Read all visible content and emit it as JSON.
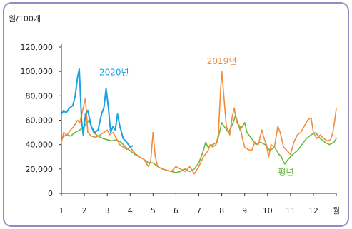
{
  "chart_data": {
    "type": "line",
    "y_unit_label": "원/100개",
    "x_unit_label": "월",
    "ylim": [
      0,
      120000
    ],
    "xlim": [
      1,
      13
    ],
    "yticks": [
      0,
      20000,
      40000,
      60000,
      80000,
      100000,
      120000
    ],
    "ytick_labels": [
      "0",
      "20,000",
      "40,000",
      "60,000",
      "80,000",
      "100,000",
      "120,000"
    ],
    "xticks": [
      1,
      2,
      3,
      4,
      5,
      6,
      7,
      8,
      9,
      10,
      11,
      12
    ],
    "xtick_labels": [
      "1",
      "2",
      "3",
      "4",
      "5",
      "6",
      "7",
      "8",
      "9",
      "10",
      "11",
      "12"
    ],
    "grid": false,
    "series": [
      {
        "name": "2019년",
        "color": "#f08c3c",
        "points": [
          [
            1.0,
            42000
          ],
          [
            1.1,
            50000
          ],
          [
            1.25,
            48000
          ],
          [
            1.4,
            52000
          ],
          [
            1.55,
            55000
          ],
          [
            1.7,
            60000
          ],
          [
            1.8,
            58000
          ],
          [
            1.95,
            70000
          ],
          [
            2.05,
            78000
          ],
          [
            2.15,
            50000
          ],
          [
            2.3,
            47000
          ],
          [
            2.5,
            46000
          ],
          [
            2.7,
            48000
          ],
          [
            2.85,
            50000
          ],
          [
            3.0,
            52000
          ],
          [
            3.1,
            48000
          ],
          [
            3.25,
            50000
          ],
          [
            3.4,
            45000
          ],
          [
            3.55,
            40000
          ],
          [
            3.7,
            38000
          ],
          [
            3.85,
            36000
          ],
          [
            4.0,
            38000
          ],
          [
            4.2,
            33000
          ],
          [
            4.4,
            30000
          ],
          [
            4.6,
            28000
          ],
          [
            4.8,
            22000
          ],
          [
            4.9,
            27000
          ],
          [
            5.0,
            50000
          ],
          [
            5.1,
            30000
          ],
          [
            5.2,
            22000
          ],
          [
            5.4,
            20000
          ],
          [
            5.6,
            19000
          ],
          [
            5.8,
            18000
          ],
          [
            6.0,
            22000
          ],
          [
            6.2,
            20000
          ],
          [
            6.4,
            18000
          ],
          [
            6.6,
            22000
          ],
          [
            6.8,
            16000
          ],
          [
            7.0,
            22000
          ],
          [
            7.2,
            30000
          ],
          [
            7.4,
            35000
          ],
          [
            7.5,
            40000
          ],
          [
            7.6,
            38000
          ],
          [
            7.75,
            40000
          ],
          [
            7.85,
            48000
          ],
          [
            7.95,
            85000
          ],
          [
            8.0,
            100000
          ],
          [
            8.1,
            78000
          ],
          [
            8.2,
            55000
          ],
          [
            8.35,
            48000
          ],
          [
            8.45,
            62000
          ],
          [
            8.55,
            70000
          ],
          [
            8.65,
            58000
          ],
          [
            8.8,
            55000
          ],
          [
            8.9,
            45000
          ],
          [
            9.0,
            38000
          ],
          [
            9.15,
            36000
          ],
          [
            9.3,
            35000
          ],
          [
            9.45,
            42000
          ],
          [
            9.6,
            40000
          ],
          [
            9.75,
            52000
          ],
          [
            9.85,
            45000
          ],
          [
            9.95,
            40000
          ],
          [
            10.05,
            30000
          ],
          [
            10.15,
            40000
          ],
          [
            10.3,
            38000
          ],
          [
            10.45,
            55000
          ],
          [
            10.55,
            50000
          ],
          [
            10.7,
            38000
          ],
          [
            10.85,
            35000
          ],
          [
            11.0,
            32000
          ],
          [
            11.15,
            42000
          ],
          [
            11.3,
            48000
          ],
          [
            11.45,
            50000
          ],
          [
            11.6,
            55000
          ],
          [
            11.75,
            60000
          ],
          [
            11.9,
            62000
          ],
          [
            12.0,
            50000
          ],
          [
            12.15,
            45000
          ],
          [
            12.3,
            48000
          ],
          [
            12.45,
            45000
          ],
          [
            12.6,
            43000
          ],
          [
            12.75,
            44000
          ],
          [
            12.85,
            50000
          ],
          [
            12.95,
            62000
          ],
          [
            13.0,
            70000
          ]
        ]
      },
      {
        "name": "2020년",
        "color": "#1aa3e0",
        "points": [
          [
            1.0,
            65000
          ],
          [
            1.1,
            68000
          ],
          [
            1.2,
            66000
          ],
          [
            1.35,
            70000
          ],
          [
            1.5,
            72000
          ],
          [
            1.6,
            80000
          ],
          [
            1.7,
            95000
          ],
          [
            1.78,
            102000
          ],
          [
            1.88,
            60000
          ],
          [
            1.95,
            48000
          ],
          [
            2.05,
            65000
          ],
          [
            2.15,
            68000
          ],
          [
            2.3,
            55000
          ],
          [
            2.45,
            50000
          ],
          [
            2.6,
            52000
          ],
          [
            2.75,
            65000
          ],
          [
            2.85,
            70000
          ],
          [
            2.95,
            86000
          ],
          [
            3.05,
            70000
          ],
          [
            3.15,
            50000
          ],
          [
            3.25,
            55000
          ],
          [
            3.35,
            52000
          ],
          [
            3.45,
            65000
          ],
          [
            3.55,
            55000
          ],
          [
            3.7,
            45000
          ],
          [
            3.85,
            42000
          ],
          [
            4.0,
            38000
          ],
          [
            4.1,
            39000
          ]
        ]
      },
      {
        "name": "평년",
        "color": "#6bb743",
        "points": [
          [
            1.0,
            45000
          ],
          [
            1.2,
            48000
          ],
          [
            1.4,
            47000
          ],
          [
            1.6,
            50000
          ],
          [
            1.8,
            52000
          ],
          [
            2.0,
            55000
          ],
          [
            2.2,
            60000
          ],
          [
            2.4,
            50000
          ],
          [
            2.6,
            47000
          ],
          [
            2.8,
            45000
          ],
          [
            3.0,
            44000
          ],
          [
            3.2,
            43000
          ],
          [
            3.4,
            44000
          ],
          [
            3.6,
            42000
          ],
          [
            3.8,
            38000
          ],
          [
            4.0,
            35000
          ],
          [
            4.2,
            32000
          ],
          [
            4.4,
            30000
          ],
          [
            4.6,
            28000
          ],
          [
            4.8,
            25000
          ],
          [
            5.0,
            25000
          ],
          [
            5.2,
            22000
          ],
          [
            5.4,
            20000
          ],
          [
            5.6,
            19000
          ],
          [
            5.8,
            18000
          ],
          [
            6.0,
            17000
          ],
          [
            6.2,
            18000
          ],
          [
            6.4,
            20000
          ],
          [
            6.6,
            18000
          ],
          [
            6.8,
            20000
          ],
          [
            7.0,
            25000
          ],
          [
            7.2,
            35000
          ],
          [
            7.3,
            42000
          ],
          [
            7.4,
            38000
          ],
          [
            7.6,
            40000
          ],
          [
            7.8,
            42000
          ],
          [
            8.0,
            58000
          ],
          [
            8.1,
            55000
          ],
          [
            8.3,
            50000
          ],
          [
            8.5,
            58000
          ],
          [
            8.6,
            64000
          ],
          [
            8.8,
            52000
          ],
          [
            9.0,
            58000
          ],
          [
            9.1,
            50000
          ],
          [
            9.3,
            45000
          ],
          [
            9.5,
            40000
          ],
          [
            9.7,
            42000
          ],
          [
            9.9,
            40000
          ],
          [
            10.1,
            35000
          ],
          [
            10.3,
            38000
          ],
          [
            10.5,
            32000
          ],
          [
            10.6,
            30000
          ],
          [
            10.75,
            24000
          ],
          [
            10.9,
            28000
          ],
          [
            11.1,
            32000
          ],
          [
            11.3,
            35000
          ],
          [
            11.5,
            40000
          ],
          [
            11.7,
            45000
          ],
          [
            11.9,
            48000
          ],
          [
            12.1,
            50000
          ],
          [
            12.3,
            45000
          ],
          [
            12.5,
            42000
          ],
          [
            12.7,
            40000
          ],
          [
            12.9,
            42000
          ],
          [
            13.0,
            45000
          ]
        ]
      }
    ],
    "annotations": [
      {
        "text": "2020년",
        "series": "2020년",
        "x": 3.3,
        "y": 97000
      },
      {
        "text": "2019년",
        "series": "2019년",
        "x": 8.0,
        "y": 106000
      },
      {
        "text": "평년",
        "series": "평년",
        "x": 10.8,
        "y": 15000
      }
    ]
  }
}
